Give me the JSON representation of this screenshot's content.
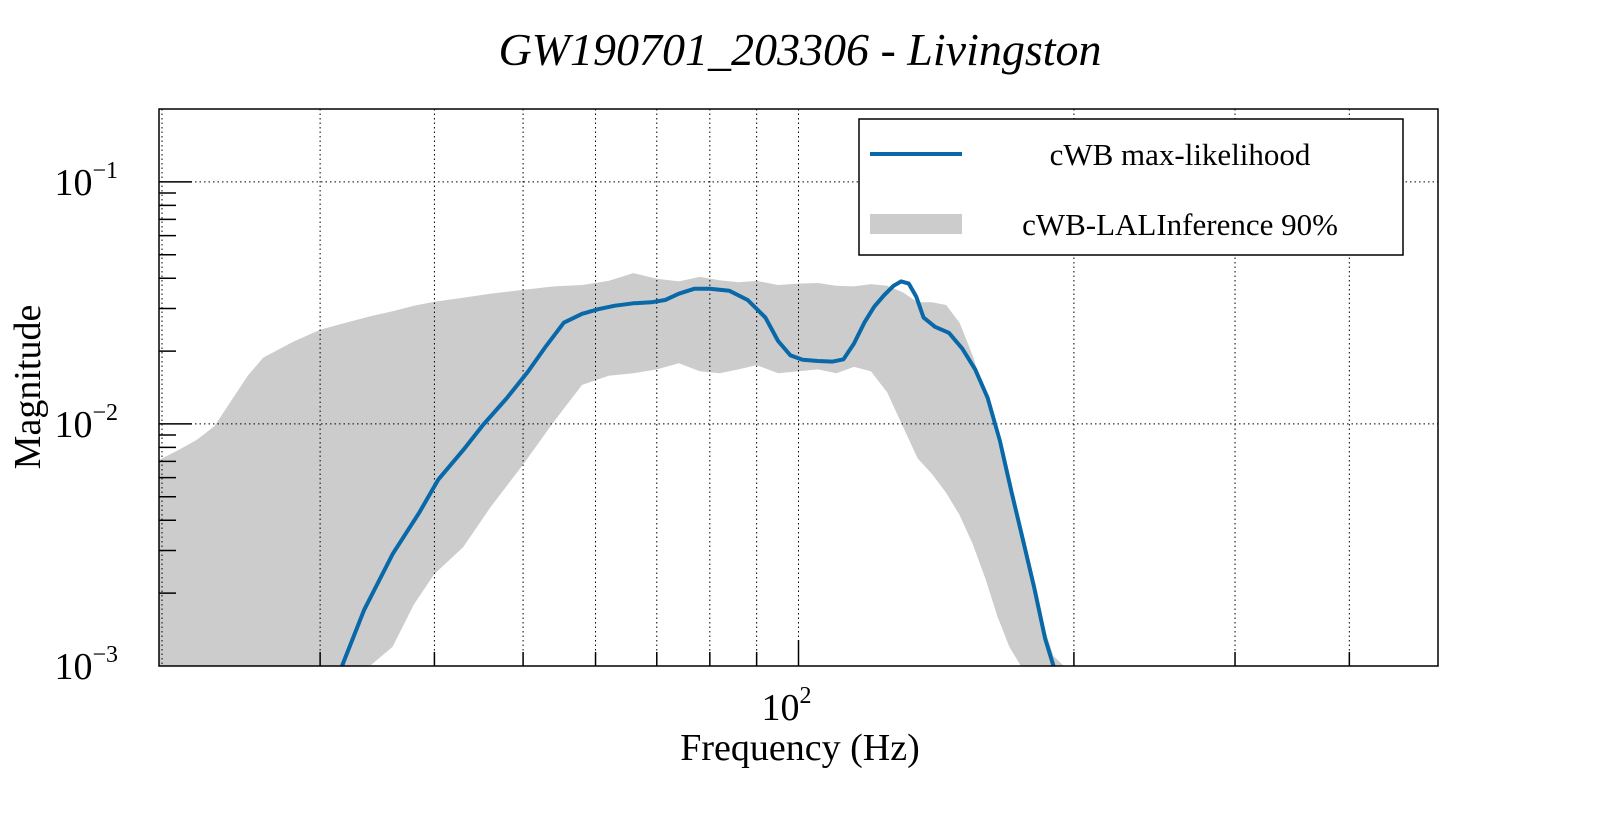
{
  "chart_data": {
    "type": "line",
    "title": "GW190701_203306 - Livingston",
    "xlabel": "Frequency (Hz)",
    "ylabel": "Magnitude",
    "xscale": "log",
    "yscale": "log",
    "xlim": [
      20,
      500
    ],
    "ylim": [
      0.001,
      0.2
    ],
    "grid": true,
    "x_ticks": [
      {
        "value": 100,
        "base": "10",
        "exp": "2"
      }
    ],
    "y_ticks": [
      {
        "value": 0.1,
        "base": "10",
        "exp": "−1"
      },
      {
        "value": 0.01,
        "base": "10",
        "exp": "−2"
      },
      {
        "value": 0.001,
        "base": "10",
        "exp": "−3"
      }
    ],
    "x_grid": [
      20,
      30,
      40,
      50,
      60,
      70,
      80,
      90,
      100,
      200,
      300,
      400,
      500
    ],
    "legend": {
      "placement": "top-right",
      "entries": [
        {
          "label": "cWB max-likelihood",
          "kind": "line",
          "color": "#0868a8"
        },
        {
          "label": "cWB-LALInference 90%",
          "kind": "band",
          "color": "#cccccc"
        }
      ]
    },
    "series": [
      {
        "name": "cWB max-likelihood",
        "color": "#0868a8",
        "x": [
          31.7,
          33.5,
          36.0,
          38.5,
          40.4,
          43.0,
          45.2,
          48.0,
          50.6,
          53.0,
          55.4,
          58.0,
          60.5,
          63.0,
          66.0,
          69.0,
          71.5,
          74.0,
          77.0,
          80.0,
          84.0,
          88.0,
          92.0,
          95.0,
          98.0,
          101.0,
          105.0,
          109.0,
          112.0,
          115.0,
          118.0,
          121.0,
          124.0,
          127.0,
          129.5,
          132.0,
          134.5,
          137.0,
          141.0,
          146.0,
          151.0,
          156.0,
          161.0,
          166.0,
          171.0,
          176.0,
          181.0,
          186.0,
          190.0
        ],
        "y": [
          0.001,
          0.0017,
          0.0029,
          0.0043,
          0.0059,
          0.0078,
          0.0099,
          0.0128,
          0.0164,
          0.021,
          0.0262,
          0.0285,
          0.0298,
          0.0308,
          0.0315,
          0.0318,
          0.0325,
          0.0345,
          0.0362,
          0.0362,
          0.0355,
          0.0325,
          0.0275,
          0.022,
          0.0192,
          0.0184,
          0.0182,
          0.0181,
          0.0185,
          0.0215,
          0.0262,
          0.0305,
          0.034,
          0.0372,
          0.0388,
          0.038,
          0.0335,
          0.0275,
          0.0252,
          0.0238,
          0.0205,
          0.0168,
          0.0128,
          0.0085,
          0.0052,
          0.0033,
          0.0021,
          0.0013,
          0.001
        ]
      },
      {
        "name": "cWB-LALInference 90%",
        "kind": "band",
        "color": "#cccccc",
        "x": [
          20.0,
          21.0,
          22.0,
          23.0,
          24.0,
          25.0,
          26.0,
          28.0,
          30.0,
          32.0,
          34.0,
          36.0,
          38.0,
          40.0,
          43.0,
          46.0,
          50.0,
          54.0,
          58.0,
          62.0,
          66.0,
          70.0,
          74.0,
          78.0,
          82.0,
          86.0,
          90.0,
          95.0,
          100.0,
          105.0,
          110.0,
          115.0,
          120.0,
          125.0,
          130.0,
          135.0,
          140.0,
          145.0,
          150.0,
          155.0,
          160.0,
          165.0,
          170.0,
          175.0,
          180.0,
          185.0,
          190.0,
          195.0
        ],
        "lower": [
          0.001,
          0.001,
          0.001,
          0.001,
          0.001,
          0.001,
          0.001,
          0.001,
          0.001,
          0.001,
          0.001,
          0.0012,
          0.0018,
          0.0024,
          0.0031,
          0.0045,
          0.0068,
          0.0102,
          0.0145,
          0.0158,
          0.0162,
          0.0168,
          0.0178,
          0.0165,
          0.0162,
          0.0168,
          0.0175,
          0.0162,
          0.0165,
          0.0168,
          0.0162,
          0.0172,
          0.0165,
          0.0135,
          0.0098,
          0.0072,
          0.0062,
          0.0052,
          0.0042,
          0.0032,
          0.0023,
          0.0016,
          0.0012,
          0.001,
          0.001,
          0.001,
          0.001,
          0.001
        ],
        "upper": [
          0.0071,
          0.0078,
          0.0086,
          0.0098,
          0.0125,
          0.0158,
          0.0188,
          0.0218,
          0.0245,
          0.0262,
          0.0278,
          0.0292,
          0.0308,
          0.032,
          0.0332,
          0.0345,
          0.0358,
          0.037,
          0.0375,
          0.039,
          0.042,
          0.0398,
          0.0388,
          0.0405,
          0.0392,
          0.0385,
          0.039,
          0.0375,
          0.038,
          0.0382,
          0.0372,
          0.037,
          0.0378,
          0.0372,
          0.035,
          0.0318,
          0.0318,
          0.031,
          0.0262,
          0.0192,
          0.0132,
          0.0085,
          0.0055,
          0.0035,
          0.0022,
          0.0015,
          0.0011,
          0.001
        ]
      }
    ]
  }
}
